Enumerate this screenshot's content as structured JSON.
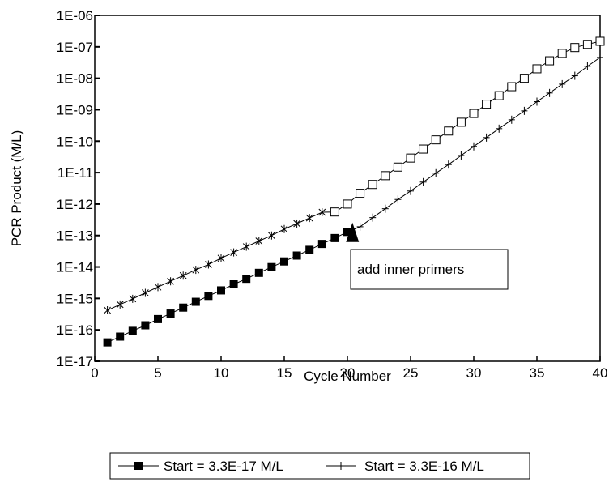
{
  "chart_data": {
    "type": "line",
    "title": "",
    "xlabel": "Cycle Number",
    "ylabel": "PCR Product (M/L)",
    "x_scale": "linear",
    "y_scale": "log",
    "xlim": [
      0,
      40
    ],
    "ylim": [
      1e-17,
      1e-06
    ],
    "x_ticks": [
      0,
      5,
      10,
      15,
      20,
      25,
      30,
      35,
      40
    ],
    "x_tick_labels": [
      "0",
      "5",
      "10",
      "15",
      "20",
      "25",
      "30",
      "35",
      "40"
    ],
    "y_ticks": [
      1e-17,
      1e-16,
      1e-15,
      1e-14,
      1e-13,
      1e-12,
      1e-11,
      1e-10,
      1e-09,
      1e-08,
      1e-07,
      1e-06
    ],
    "y_tick_labels": [
      "1E-17",
      "1E-16",
      "1E-15",
      "1E-14",
      "1E-13",
      "1E-12",
      "1E-11",
      "1E-10",
      "1E-09",
      "1E-08",
      "1E-07",
      "1E-06"
    ],
    "grid": false,
    "legend_position": "bottom",
    "series": [
      {
        "name": "Start = 3.3E-17 M/L",
        "markers": [
          {
            "style": "filled-square",
            "x": [
              1,
              20
            ],
            "growth": 1.92
          },
          {
            "style": "plus",
            "x": [
              21,
              40
            ],
            "growth": 1.92
          }
        ],
        "x": [
          1,
          2,
          3,
          4,
          5,
          6,
          7,
          8,
          9,
          10,
          11,
          12,
          13,
          14,
          15,
          16,
          17,
          18,
          19,
          20,
          21,
          22,
          23,
          24,
          25,
          26,
          27,
          28,
          29,
          30,
          31,
          32,
          33,
          34,
          35,
          36,
          37,
          38,
          39,
          40
        ],
        "values": [
          4e-17,
          6.1e-17,
          9.3e-17,
          1.4e-16,
          2.2e-16,
          3.3e-16,
          5.1e-16,
          7.8e-16,
          1.2e-15,
          1.8e-15,
          2.8e-15,
          4.2e-15,
          6.5e-15,
          9.9e-15,
          1.5e-14,
          2.3e-14,
          3.5e-14,
          5.4e-14,
          8.3e-14,
          1.3e-13,
          1.9e-13,
          3.7e-13,
          7.1e-13,
          1.4e-12,
          2.6e-12,
          5e-12,
          9.6e-12,
          1.8e-11,
          3.5e-11,
          6.8e-11,
          1.3e-10,
          2.5e-10,
          4.8e-10,
          9.2e-10,
          1.8e-09,
          3.4e-09,
          6.5e-09,
          1.2e-08,
          2.4e-08,
          4.6e-08
        ]
      },
      {
        "name": "Start = 3.3E-16 M/L",
        "markers": [
          {
            "style": "asterisk",
            "x": [
              1,
              18
            ]
          },
          {
            "style": "open-square",
            "x": [
              19,
              40
            ]
          }
        ],
        "x": [
          1,
          2,
          3,
          4,
          5,
          6,
          7,
          8,
          9,
          10,
          11,
          12,
          13,
          14,
          15,
          16,
          17,
          18,
          19,
          20,
          21,
          22,
          23,
          24,
          25,
          26,
          27,
          28,
          29,
          30,
          31,
          32,
          33,
          34,
          35,
          36,
          37,
          38,
          39,
          40
        ],
        "values": [
          4.2e-16,
          6.4e-16,
          9.7e-16,
          1.5e-15,
          2.3e-15,
          3.5e-15,
          5.3e-15,
          8.1e-15,
          1.2e-14,
          1.9e-14,
          2.9e-14,
          4.4e-14,
          6.7e-14,
          1e-13,
          1.6e-13,
          2.4e-13,
          3.6e-13,
          5.5e-13,
          5.6e-13,
          1e-12,
          2.2e-12,
          4.2e-12,
          8e-12,
          1.5e-11,
          2.9e-11,
          5.6e-11,
          1.1e-10,
          2.1e-10,
          4e-10,
          7.6e-10,
          1.5e-09,
          2.8e-09,
          5.4e-09,
          1e-08,
          2e-08,
          3.6e-08,
          6.2e-08,
          9.5e-08,
          1.2e-07,
          1.5e-07
        ]
      }
    ],
    "annotations": [
      {
        "text": "add inner primers",
        "x": 20.4,
        "y": 1e-13
      }
    ]
  }
}
